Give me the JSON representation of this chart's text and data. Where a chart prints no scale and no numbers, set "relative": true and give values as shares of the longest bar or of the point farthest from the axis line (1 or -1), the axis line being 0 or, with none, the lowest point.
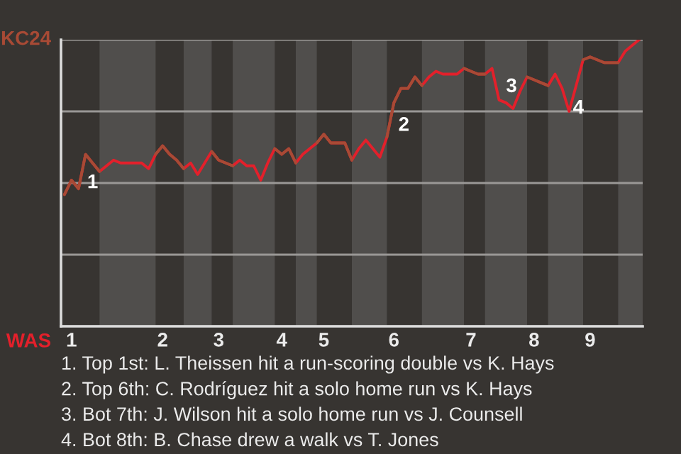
{
  "chart_data": {
    "type": "line",
    "relative": true,
    "categories": [
      null,
      "1",
      null,
      null,
      null,
      null,
      null,
      null,
      null,
      null,
      null,
      null,
      null,
      null,
      "2",
      null,
      null,
      null,
      null,
      null,
      null,
      null,
      "3",
      null,
      null,
      null,
      null,
      null,
      null,
      null,
      null,
      "4",
      null,
      null,
      null,
      null,
      null,
      "5",
      null,
      null,
      null,
      null,
      null,
      null,
      null,
      null,
      null,
      "6",
      null,
      null,
      null,
      null,
      null,
      null,
      null,
      null,
      null,
      null,
      "7",
      null,
      null,
      null,
      null,
      null,
      null,
      null,
      null,
      "8",
      null,
      null,
      null,
      null,
      null,
      null,
      null,
      "9",
      null,
      null,
      null,
      null,
      null,
      null,
      null
    ],
    "grid": "y",
    "marker": "none",
    "line_style": "solid",
    "series": [
      {
        "color": "#e3202b",
        "values": [
          0.46,
          0.51,
          0.48,
          0.6,
          0.57,
          0.54,
          0.56,
          0.58,
          0.57,
          0.57,
          0.57,
          0.57,
          0.55,
          0.6,
          0.63,
          0.6,
          0.58,
          0.55,
          0.57,
          0.53,
          0.57,
          0.61,
          0.58,
          0.57,
          0.56,
          0.58,
          0.56,
          0.56,
          0.51,
          0.57,
          0.62,
          0.6,
          0.62,
          0.57,
          0.6,
          0.62,
          0.64,
          0.67,
          0.64,
          0.64,
          0.64,
          0.58,
          0.62,
          0.65,
          0.62,
          0.59,
          0.66,
          0.78,
          0.83,
          0.83,
          0.87,
          0.84,
          0.87,
          0.89,
          0.88,
          0.88,
          0.88,
          0.9,
          0.89,
          0.88,
          0.88,
          0.9,
          0.79,
          0.78,
          0.76,
          0.82,
          0.87,
          0.86,
          0.85,
          0.84,
          0.88,
          0.83,
          0.75,
          0.84,
          0.93,
          0.94,
          0.93,
          0.92,
          0.92,
          0.92,
          0.96,
          0.98,
          1
        ]
      },
      {
        "color": "#a84a35",
        "values": [
          0.46,
          0.51,
          0.48,
          0.6,
          0.57,
          0.54,
          null,
          null,
          null,
          null,
          null,
          null,
          null,
          0.6,
          0.63,
          0.6,
          0.58,
          0.55,
          null,
          null,
          null,
          0.61,
          0.58,
          0.57,
          0.56,
          null,
          null,
          null,
          null,
          null,
          0.62,
          0.6,
          0.62,
          0.57,
          null,
          null,
          0.64,
          0.67,
          0.64,
          0.64,
          0.64,
          0.58,
          null,
          null,
          null,
          null,
          0.66,
          0.78,
          0.83,
          0.83,
          0.87,
          0.84,
          null,
          null,
          null,
          null,
          null,
          0.9,
          0.89,
          0.88,
          0.88,
          null,
          null,
          null,
          null,
          null,
          0.87,
          0.86,
          0.85,
          0.84,
          null,
          null,
          null,
          null,
          0.93,
          0.94,
          0.93,
          0.92,
          0.92,
          0.92,
          null,
          null,
          null
        ]
      }
    ],
    "annotations": [
      "KC24",
      "WAS",
      "1",
      "2",
      "3",
      "4",
      "1. Top 1st: L. Theissen hit a run-scoring double vs K. Hays",
      "2. Top 6th: C. Rodríguez hit a solo home run vs K. Hays",
      "3. Bot 7th: J. Wilson hit a solo home run vs J. Counsell",
      "4. Bot 8th: B. Chase drew a walk vs T. Jones"
    ]
  }
}
